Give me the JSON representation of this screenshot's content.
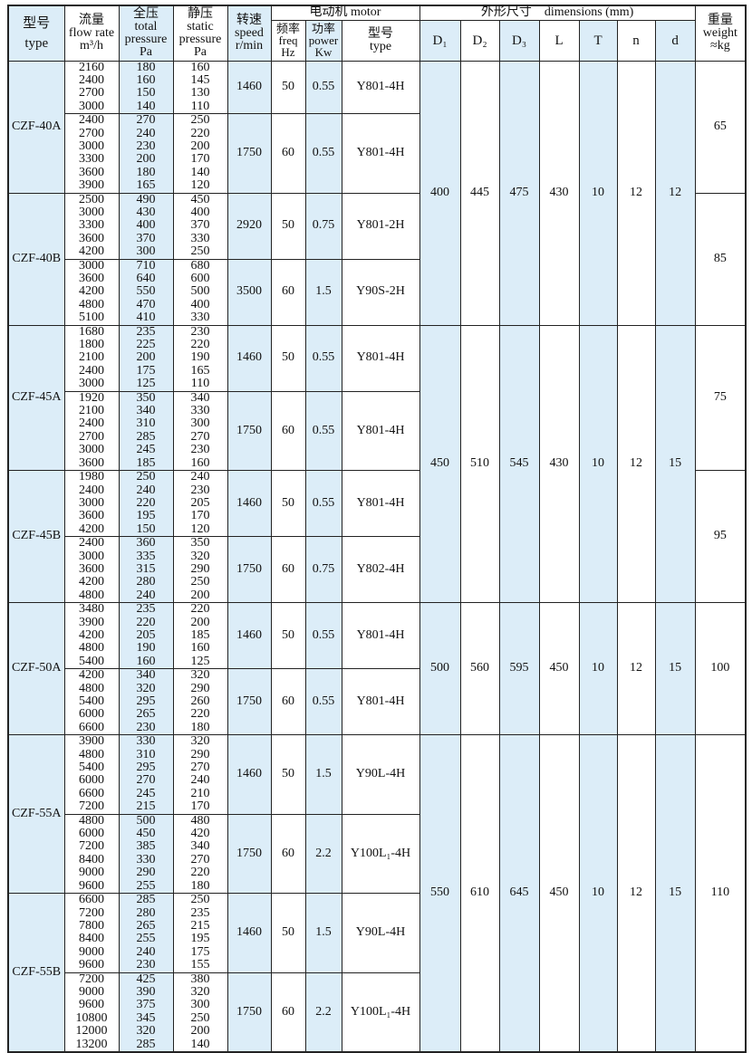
{
  "header": {
    "type_cn": "型号",
    "type_en": "type",
    "flow_cn": "流量",
    "flow_en": "flow rate",
    "flow_unit": "m³/h",
    "total_cn": "全压",
    "total_en": "total",
    "total_en2": "pressure",
    "total_unit": "Pa",
    "static_cn": "静压",
    "static_en": "static",
    "static_en2": "pressure",
    "static_unit": "Pa",
    "speed_cn": "转速",
    "speed_en": "speed",
    "speed_unit": "r/min",
    "motor": "电动机  motor",
    "freq_cn": "频率",
    "freq_en": "freq",
    "freq_unit": "Hz",
    "power_cn": "功率",
    "power_en": "power",
    "power_unit": "Kw",
    "mtype_cn": "型号",
    "mtype_en": "type",
    "dimensions": "外形尺寸    dimensions (mm)",
    "dims": [
      "D₁",
      "D₂",
      "D₃",
      "L",
      "T",
      "n",
      "d"
    ],
    "weight_cn": "重量",
    "weight_en": "weight",
    "weight_unit": "≈kg"
  },
  "colors": {
    "highlight": "#dcedf8",
    "border": "#222222"
  },
  "groups": [
    {
      "dims": [
        "400",
        "445",
        "475",
        "430",
        "10",
        "12",
        "12"
      ],
      "models": [
        {
          "type": "CZF-40A",
          "weight": "65",
          "subs": [
            {
              "flow": [
                "2160",
                "2400",
                "2700",
                "3000"
              ],
              "total": [
                "180",
                "160",
                "150",
                "140"
              ],
              "static": [
                "160",
                "145",
                "130",
                "110"
              ],
              "speed": "1460",
              "freq": "50",
              "power": "0.55",
              "motor": "Y801-4H"
            },
            {
              "flow": [
                "2400",
                "2700",
                "3000",
                "3300",
                "3600",
                "3900"
              ],
              "total": [
                "270",
                "240",
                "230",
                "200",
                "180",
                "165"
              ],
              "static": [
                "250",
                "220",
                "200",
                "170",
                "140",
                "120"
              ],
              "speed": "1750",
              "freq": "60",
              "power": "0.55",
              "motor": "Y801-4H"
            }
          ]
        },
        {
          "type": "CZF-40B",
          "weight": "85",
          "subs": [
            {
              "flow": [
                "2500",
                "3000",
                "3300",
                "3600",
                "4200"
              ],
              "total": [
                "490",
                "430",
                "400",
                "370",
                "300"
              ],
              "static": [
                "450",
                "400",
                "370",
                "330",
                "250"
              ],
              "speed": "2920",
              "freq": "50",
              "power": "0.75",
              "motor": "Y801-2H"
            },
            {
              "flow": [
                "3000",
                "3600",
                "4200",
                "4800",
                "5100"
              ],
              "total": [
                "710",
                "640",
                "550",
                "470",
                "410"
              ],
              "static": [
                "680",
                "600",
                "500",
                "400",
                "330"
              ],
              "speed": "3500",
              "freq": "60",
              "power": "1.5",
              "motor": "Y90S-2H"
            }
          ]
        }
      ]
    },
    {
      "dims": [
        "450",
        "510",
        "545",
        "430",
        "10",
        "12",
        "15"
      ],
      "models": [
        {
          "type": "CZF-45A",
          "weight": "75",
          "subs": [
            {
              "flow": [
                "1680",
                "1800",
                "2100",
                "2400",
                "3000"
              ],
              "total": [
                "235",
                "225",
                "200",
                "175",
                "125"
              ],
              "static": [
                "230",
                "220",
                "190",
                "165",
                "110"
              ],
              "speed": "1460",
              "freq": "50",
              "power": "0.55",
              "motor": "Y801-4H"
            },
            {
              "flow": [
                "1920",
                "2100",
                "2400",
                "2700",
                "3000",
                "3600"
              ],
              "total": [
                "350",
                "340",
                "310",
                "285",
                "245",
                "185"
              ],
              "static": [
                "340",
                "330",
                "300",
                "270",
                "230",
                "160"
              ],
              "speed": "1750",
              "freq": "60",
              "power": "0.55",
              "motor": "Y801-4H"
            }
          ]
        },
        {
          "type": "CZF-45B",
          "weight": "95",
          "subs": [
            {
              "flow": [
                "1980",
                "2400",
                "3000",
                "3600",
                "4200"
              ],
              "total": [
                "250",
                "240",
                "220",
                "195",
                "150"
              ],
              "static": [
                "240",
                "230",
                "205",
                "170",
                "120"
              ],
              "speed": "1460",
              "freq": "50",
              "power": "0.55",
              "motor": "Y801-4H"
            },
            {
              "flow": [
                "2400",
                "3000",
                "3600",
                "4200",
                "4800"
              ],
              "total": [
                "360",
                "335",
                "315",
                "280",
                "240"
              ],
              "static": [
                "350",
                "320",
                "290",
                "250",
                "200"
              ],
              "speed": "1750",
              "freq": "60",
              "power": "0.75",
              "motor": "Y802-4H"
            }
          ]
        }
      ]
    },
    {
      "dims": [
        "500",
        "560",
        "595",
        "450",
        "10",
        "12",
        "15"
      ],
      "models": [
        {
          "type": "CZF-50A",
          "weight": "100",
          "subs": [
            {
              "flow": [
                "3480",
                "3900",
                "4200",
                "4800",
                "5400"
              ],
              "total": [
                "235",
                "220",
                "205",
                "190",
                "160"
              ],
              "static": [
                "220",
                "200",
                "185",
                "160",
                "125"
              ],
              "speed": "1460",
              "freq": "50",
              "power": "0.55",
              "motor": "Y801-4H"
            },
            {
              "flow": [
                "4200",
                "4800",
                "5400",
                "6000",
                "6600"
              ],
              "total": [
                "340",
                "320",
                "295",
                "265",
                "230"
              ],
              "static": [
                "320",
                "290",
                "260",
                "220",
                "180"
              ],
              "speed": "1750",
              "freq": "60",
              "power": "0.55",
              "motor": "Y801-4H"
            }
          ]
        }
      ]
    },
    {
      "dims": [
        "550",
        "610",
        "645",
        "450",
        "10",
        "12",
        "15"
      ],
      "weight": "110",
      "models": [
        {
          "type": "CZF-55A",
          "subs": [
            {
              "flow": [
                "3900",
                "4800",
                "5400",
                "6000",
                "6600",
                "7200"
              ],
              "total": [
                "330",
                "310",
                "295",
                "270",
                "245",
                "215"
              ],
              "static": [
                "320",
                "290",
                "270",
                "240",
                "210",
                "170"
              ],
              "speed": "1460",
              "freq": "50",
              "power": "1.5",
              "motor": "Y90L-4H"
            },
            {
              "flow": [
                "4800",
                "6000",
                "7200",
                "8400",
                "9000",
                "9600"
              ],
              "total": [
                "500",
                "450",
                "385",
                "330",
                "290",
                "255"
              ],
              "static": [
                "480",
                "420",
                "340",
                "270",
                "220",
                "180"
              ],
              "speed": "1750",
              "freq": "60",
              "power": "2.2",
              "motor": "Y100L₁-4H"
            }
          ]
        },
        {
          "type": "CZF-55B",
          "subs": [
            {
              "flow": [
                "6600",
                "7200",
                "7800",
                "8400",
                "9000",
                "9600"
              ],
              "total": [
                "285",
                "280",
                "265",
                "255",
                "240",
                "230"
              ],
              "static": [
                "250",
                "235",
                "215",
                "195",
                "175",
                "155"
              ],
              "speed": "1460",
              "freq": "50",
              "power": "1.5",
              "motor": "Y90L-4H"
            },
            {
              "flow": [
                "7200",
                "9000",
                "9600",
                "10800",
                "12000",
                "13200"
              ],
              "total": [
                "425",
                "390",
                "375",
                "345",
                "320",
                "285"
              ],
              "static": [
                "380",
                "320",
                "300",
                "250",
                "200",
                "140"
              ],
              "speed": "1750",
              "freq": "60",
              "power": "2.2",
              "motor": "Y100L₁-4H"
            }
          ]
        }
      ]
    }
  ]
}
